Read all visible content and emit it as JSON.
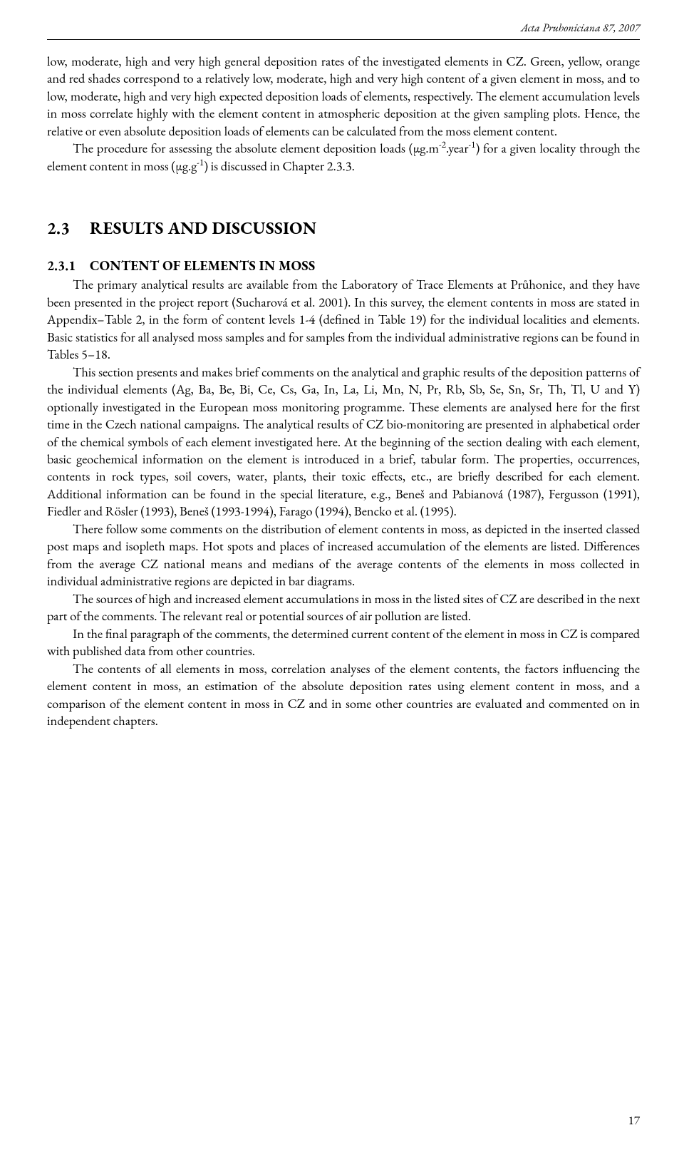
{
  "runningHead": "Acta Pruhoniciana 87, 2007",
  "para1_a": "low, moderate, high and very high general deposition rates of the investigated elements in CZ. Green, yellow, orange and red shades correspond to a relatively low, moderate, high and very high content of a given element in moss, and to low, moderate, high and very high expected deposition loads of elements, respectively. The element accumulation levels in moss correlate highly with the element content in atmospheric deposition at the given sampling plots. Hence, the relative or even absolute deposition loads of elements can be calculated from the moss element content.",
  "para2_a": "The procedure for assessing the absolute element deposition loads (µg.m",
  "para2_sup1": "-2",
  "para2_b": ".year",
  "para2_sup2": "-1",
  "para2_c": ") for a given locality through the element content in moss (µg.g",
  "para2_sup3": "-1",
  "para2_d": ") is discussed in Chapter 2.3.3.",
  "h2_num": "2.3",
  "h2_text": "RESULTS AND DISCUSSION",
  "h3_num": "2.3.1",
  "h3_text": "CONTENT OF ELEMENTS IN MOSS",
  "para3": "The primary analytical results are available from the Laboratory of Trace Elements at Průhonice, and they have been presented in the project report (Sucharová et al. 2001). In this survey, the element contents in moss are stated in Appendix–Table 2, in the form of content levels 1-4 (defined in Table 19) for the individual localities and elements. Basic statistics for all analysed moss samples and for samples from the individual administrative regions can be found in Tables 5–18.",
  "para4": "This section presents and makes brief comments on the analytical and graphic results of the deposition patterns of the individual elements (Ag, Ba, Be, Bi, Ce, Cs, Ga, In, La, Li, Mn, N, Pr, Rb, Sb, Se, Sn, Sr, Th, Tl, U and Y) optionally investigated in the European moss monitoring programme. These elements are analysed here for the first time in the Czech national campaigns. The analytical results of CZ bio-monitoring are presented in alphabetical order of the chemical symbols of each element investigated here. At the beginning of the section dealing with each element, basic geochemical information on the element is introduced in a brief, tabular form. The properties, occurrences, contents in rock types, soil covers, water, plants, their toxic effects, etc., are briefly described for each element. Additional information can be found in the special literature, e.g., Beneš and Pabianová (1987), Fergusson (1991), Fiedler and Rösler (1993), Beneš (1993-1994), Farago (1994), Bencko et al. (1995).",
  "para5": "There follow some comments on the distribution of element contents in moss, as depicted in the inserted classed post maps and isopleth maps. Hot spots and places of increased accumulation of the elements are listed. Differences from the average CZ national means and medians of the average contents of the elements in moss collected in individual administrative regions are depicted in bar diagrams.",
  "para6": "The sources of high and increased element accumulations in moss in the listed sites of CZ are described in the next part of the comments. The relevant real or potential sources of air pollution are listed.",
  "para7": "In the final paragraph of the comments, the determined current content of the element in moss in CZ is compared with published data from other countries.",
  "para8": "The contents of all elements in moss, correlation analyses of the element contents, the factors influencing the element content in moss, an estimation of the absolute deposition rates using element content in moss, and a comparison of the element content in moss in CZ and in some other countries are evaluated and commented on in independent chapters.",
  "pageNumber": "17"
}
